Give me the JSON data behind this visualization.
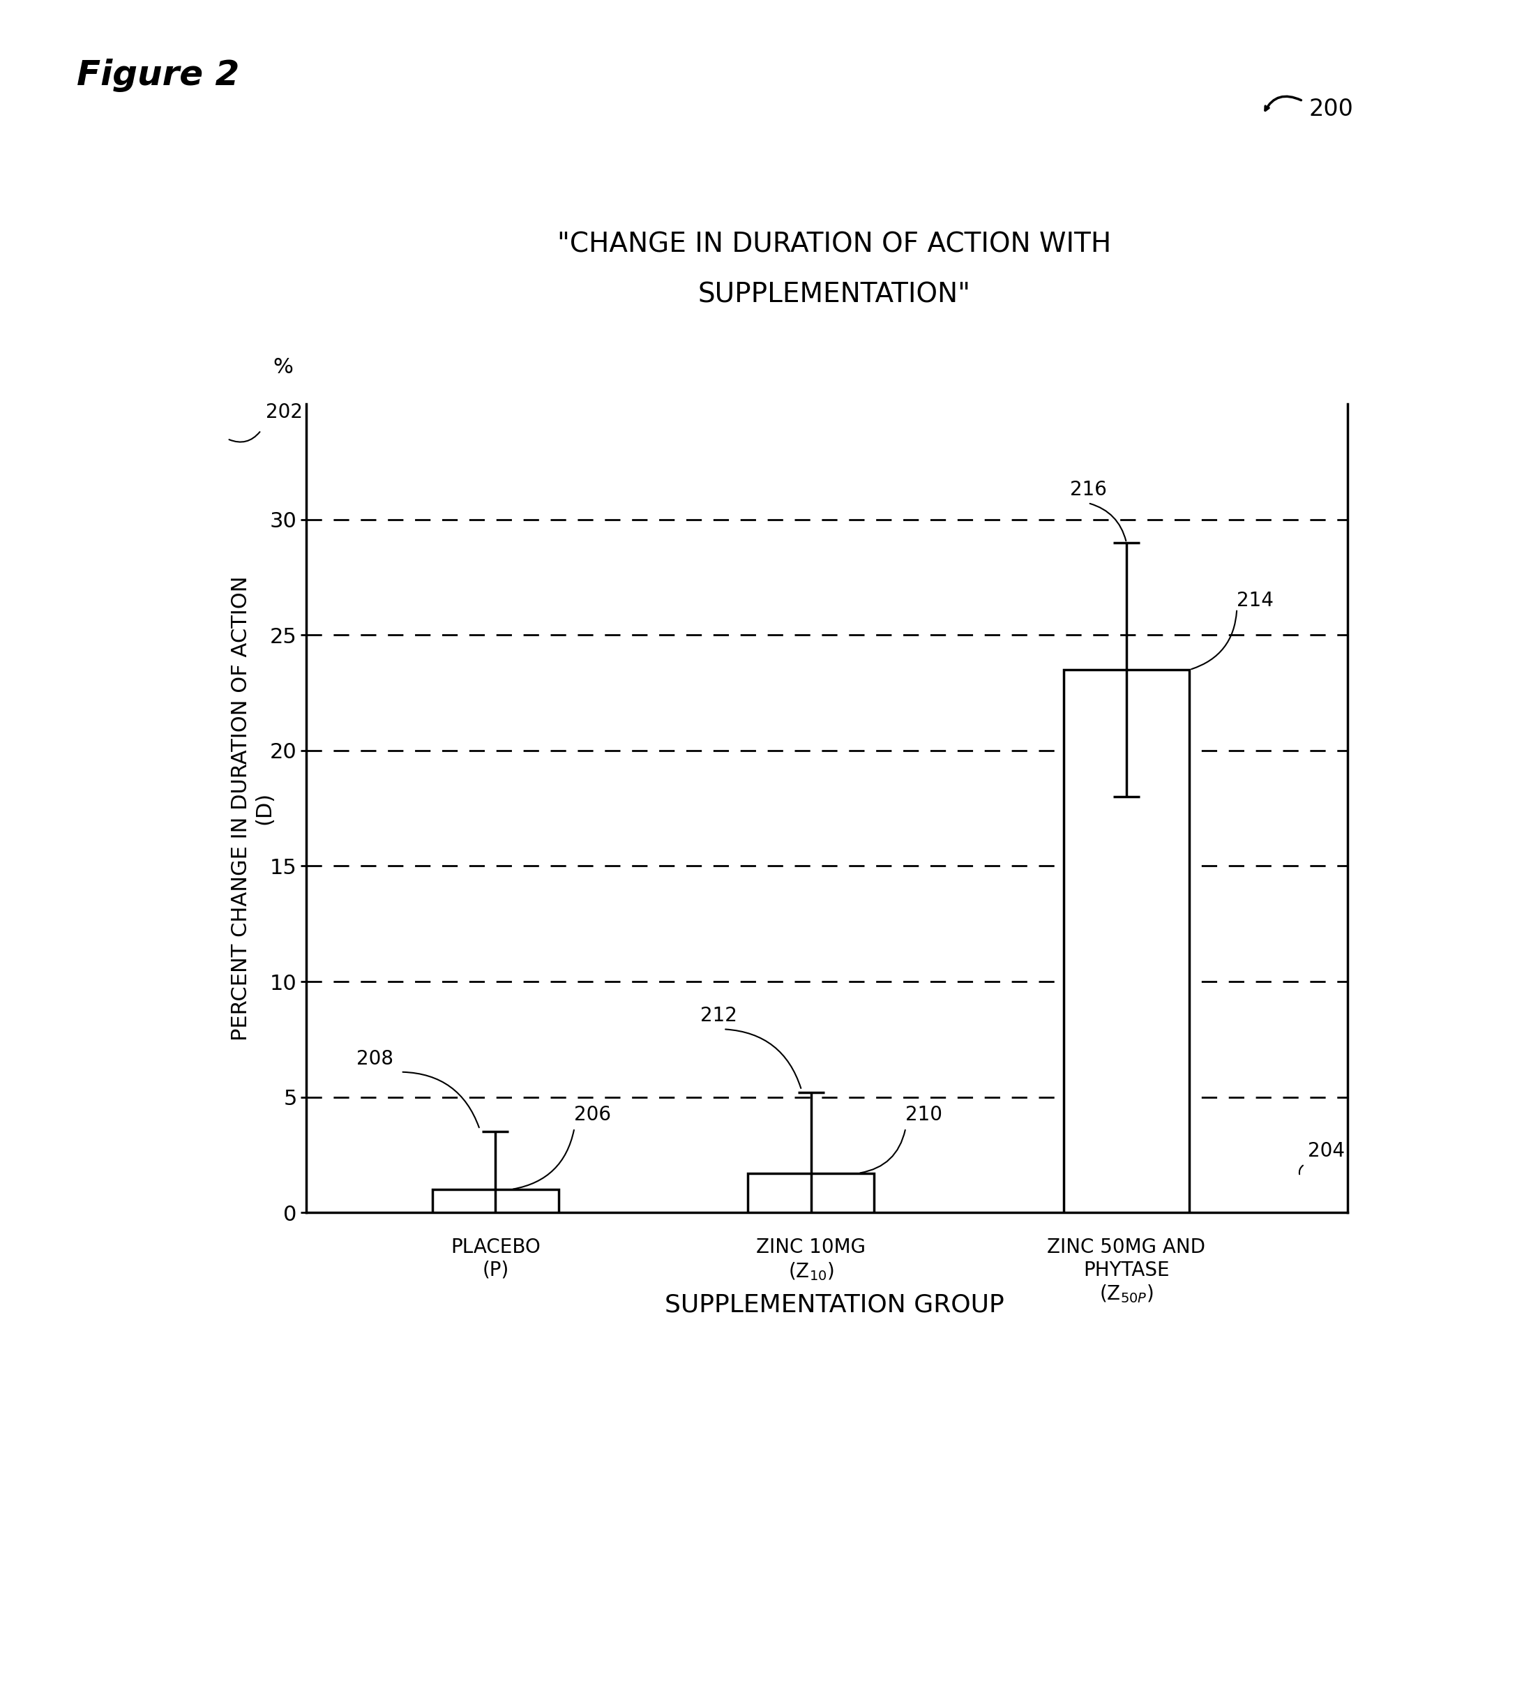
{
  "title_line1": "\"CHANGE IN DURATION OF ACTION WITH",
  "title_line2": "SUPPLEMENTATION\"",
  "xlabel": "SUPPLEMENTATION GROUP",
  "ylabel_line1": "PERCENT CHANGE IN DURATION OF ACTION",
  "ylabel_line2": "(D)",
  "figure_label": "Figure 2",
  "ref_number": "200",
  "bar_values": [
    1.0,
    1.7,
    23.5
  ],
  "bar_errors": [
    2.5,
    3.5,
    5.5
  ],
  "bar_color": "#ffffff",
  "bar_edgecolor": "#000000",
  "ylim": [
    0,
    35
  ],
  "yticks": [
    0,
    5,
    10,
    15,
    20,
    25,
    30
  ],
  "bg_color": "#ffffff"
}
